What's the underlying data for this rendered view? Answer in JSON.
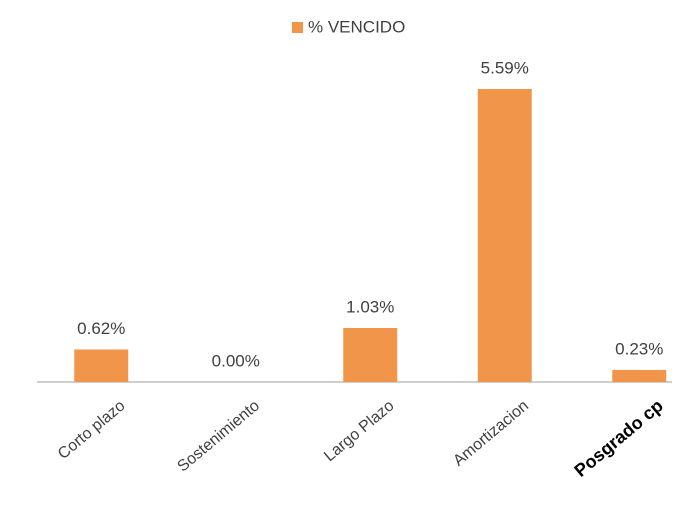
{
  "chart_data": {
    "type": "bar",
    "legend": "% VENCIDO",
    "categories": [
      "Corto plazo",
      "Sostenimiento",
      "Largo Plazo",
      "Amortizacion",
      "Posgrado cp"
    ],
    "values": [
      0.62,
      0.0,
      1.03,
      5.59,
      0.23
    ],
    "value_labels": [
      "0.62%",
      "0.00%",
      "1.03%",
      "5.59%",
      "0.23%"
    ],
    "color": "#f0954a"
  }
}
